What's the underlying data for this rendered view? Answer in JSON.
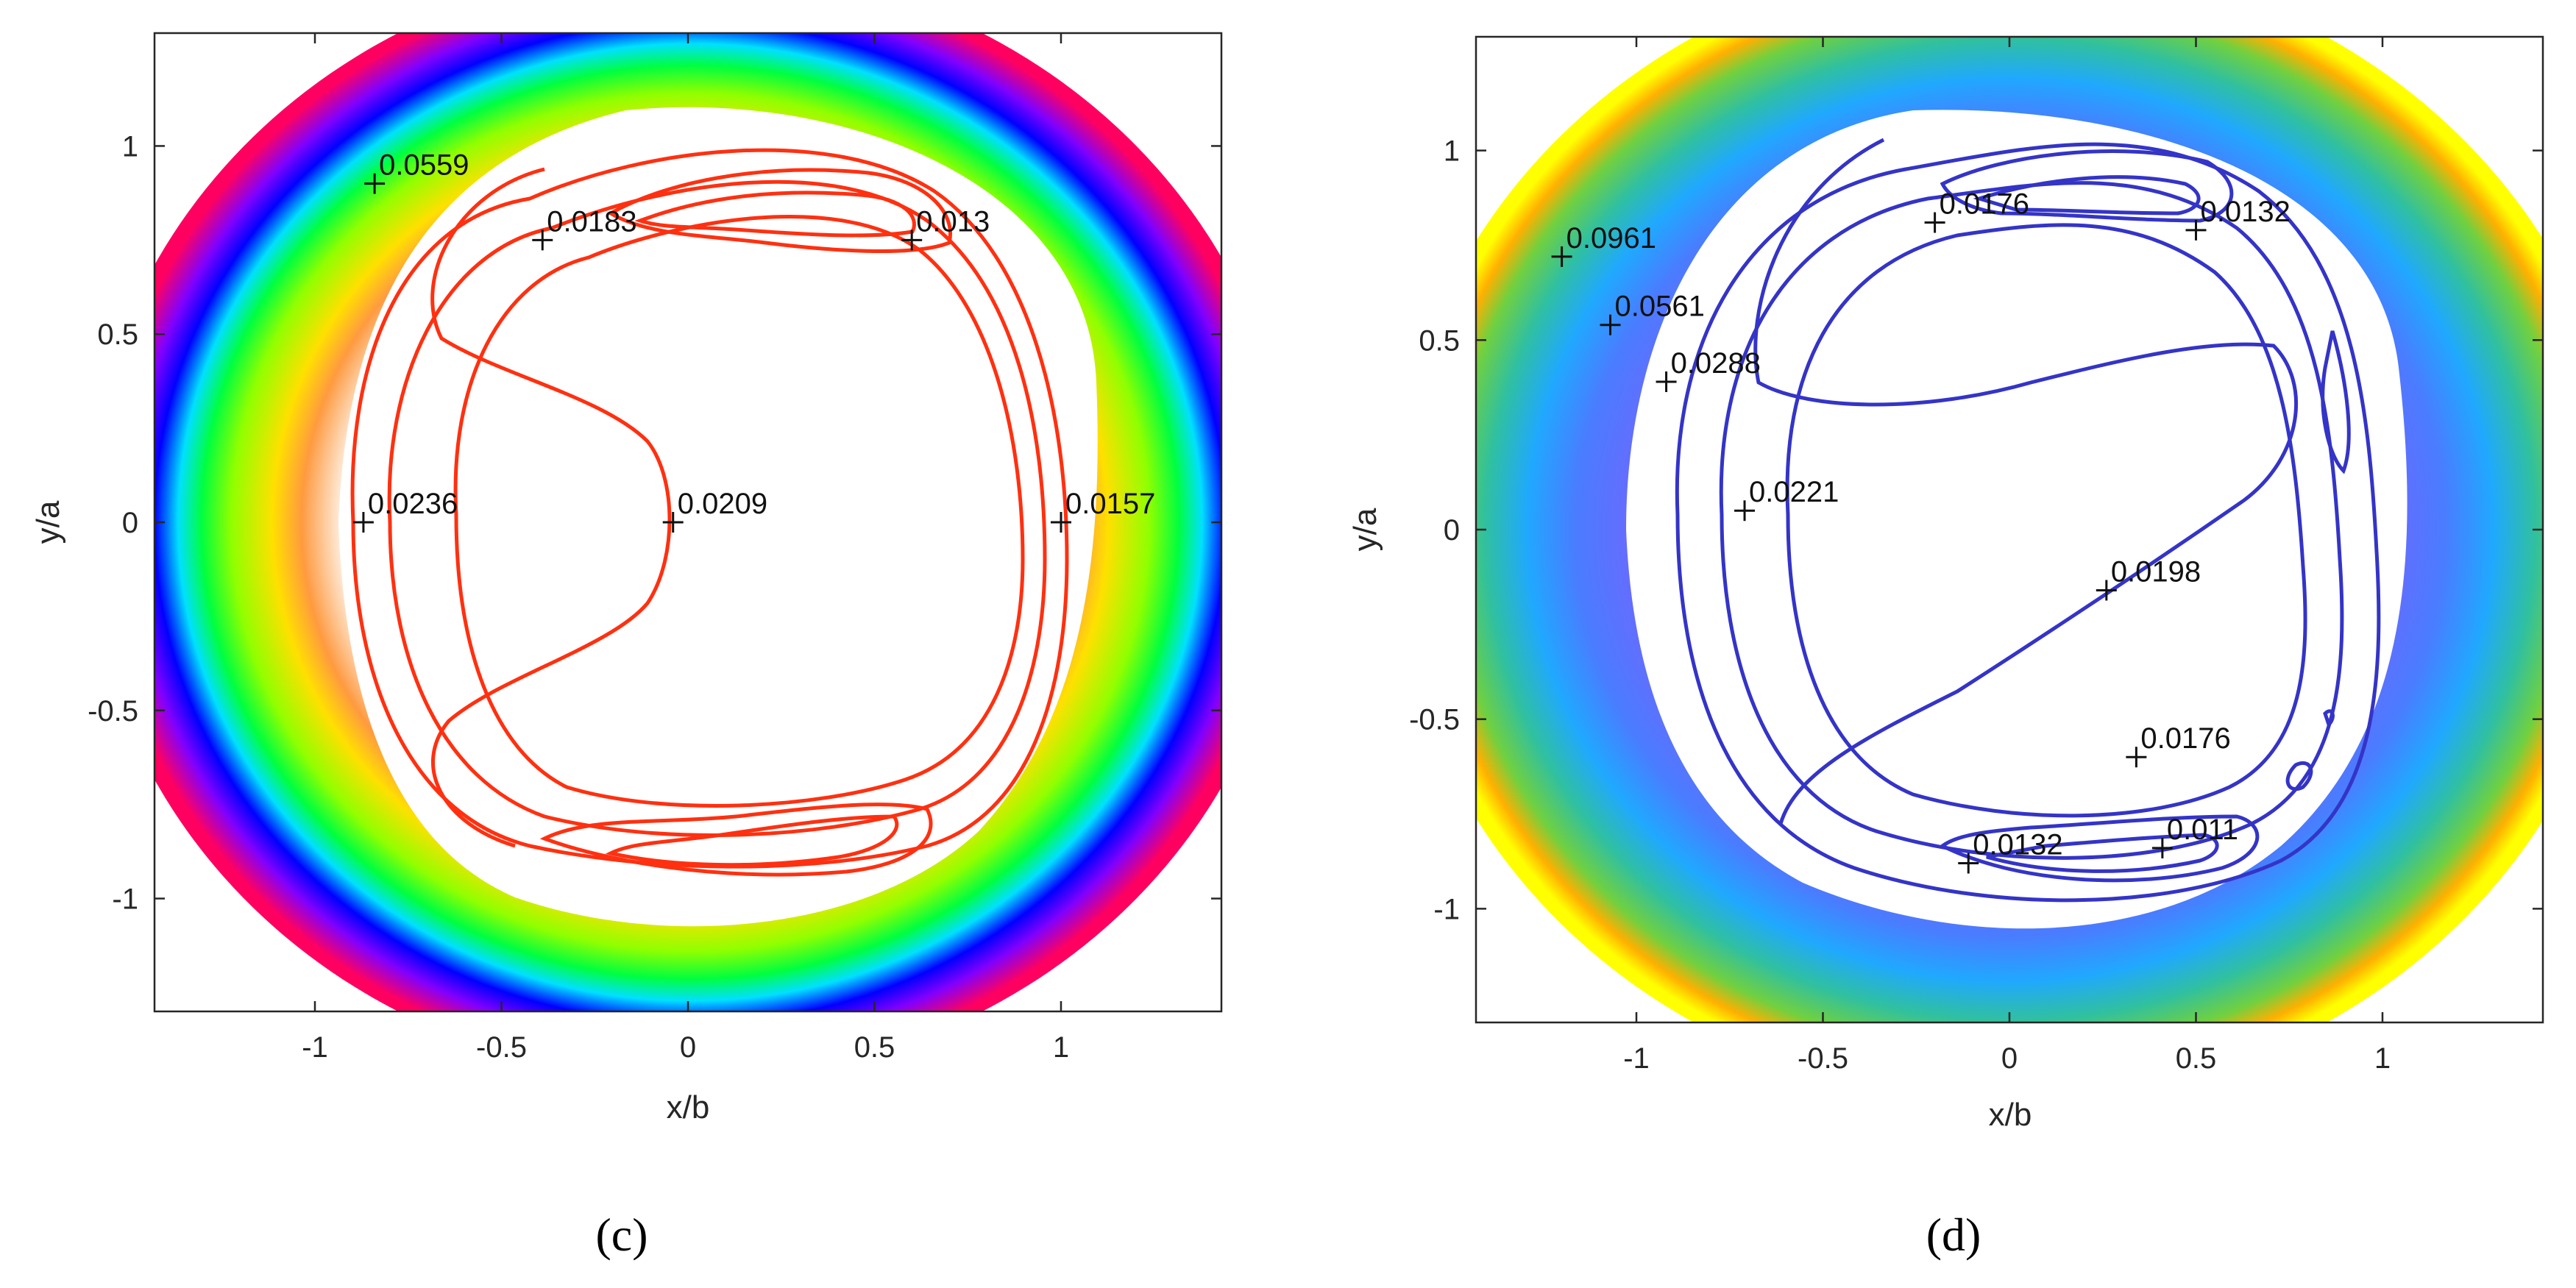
{
  "chart_data": [
    {
      "type": "contour",
      "panel": "(c)",
      "xlabel": "x/b",
      "ylabel": "y/a",
      "xlim": [
        -1.43,
        1.43
      ],
      "ylim": [
        -1.3,
        1.3
      ],
      "xticks": [
        -1,
        -0.5,
        0,
        0.5,
        1
      ],
      "yticks": [
        -1,
        -0.5,
        0,
        0.5,
        1
      ],
      "xtick_labels": [
        "-1",
        "-0.5",
        "0",
        "0.5",
        "1"
      ],
      "ytick_labels": [
        "-1",
        "-0.5",
        "0",
        "0.5",
        "1"
      ],
      "contour_colormap": [
        "#ff0080",
        "#8000ff",
        "#0000ff",
        "#00ffff",
        "#00ff00",
        "#ffff00",
        "#ff8000",
        "#ff0000"
      ],
      "inner_line_color": "#ff3010",
      "labels": [
        {
          "x": -0.84,
          "y": 0.9,
          "text": "0.0559"
        },
        {
          "x": -0.39,
          "y": 0.75,
          "text": "0.0183"
        },
        {
          "x": 0.6,
          "y": 0.75,
          "text": "0.013"
        },
        {
          "x": -0.87,
          "y": 0.0,
          "text": "0.0236"
        },
        {
          "x": -0.04,
          "y": 0.0,
          "text": "0.0209"
        },
        {
          "x": 1.0,
          "y": 0.0,
          "text": "0.0157"
        }
      ]
    },
    {
      "type": "contour",
      "panel": "(d)",
      "xlabel": "x/b",
      "ylabel": "y/a",
      "xlim": [
        -1.43,
        1.43
      ],
      "ylim": [
        -1.3,
        1.3
      ],
      "xticks": [
        -1,
        -0.5,
        0,
        0.5,
        1
      ],
      "yticks": [
        -1,
        -0.5,
        0,
        0.5,
        1
      ],
      "xtick_labels": [
        "-1",
        "-0.5",
        "0",
        "0.5",
        "1"
      ],
      "ytick_labels": [
        "-1",
        "-0.5",
        "0",
        "0.5",
        "1"
      ],
      "contour_colormap": [
        "#ffff00",
        "#ffb000",
        "#40c040",
        "#20a0ff",
        "#4060ff",
        "#6060ff",
        "#3030c0"
      ],
      "inner_line_color": "#3030c8",
      "labels": [
        {
          "x": -1.2,
          "y": 0.72,
          "text": "0.0961"
        },
        {
          "x": -1.07,
          "y": 0.54,
          "text": "0.0561"
        },
        {
          "x": -0.92,
          "y": 0.39,
          "text": "0.0288"
        },
        {
          "x": -0.71,
          "y": 0.05,
          "text": "0.0221"
        },
        {
          "x": -0.2,
          "y": 0.81,
          "text": "0.0176"
        },
        {
          "x": 0.5,
          "y": 0.79,
          "text": "0.0132"
        },
        {
          "x": 0.26,
          "y": -0.16,
          "text": "0.0198"
        },
        {
          "x": 0.34,
          "y": -0.6,
          "text": "0.0176"
        },
        {
          "x": -0.11,
          "y": -0.88,
          "text": "0.0132"
        },
        {
          "x": 0.41,
          "y": -0.84,
          "text": "0.011"
        }
      ]
    }
  ]
}
